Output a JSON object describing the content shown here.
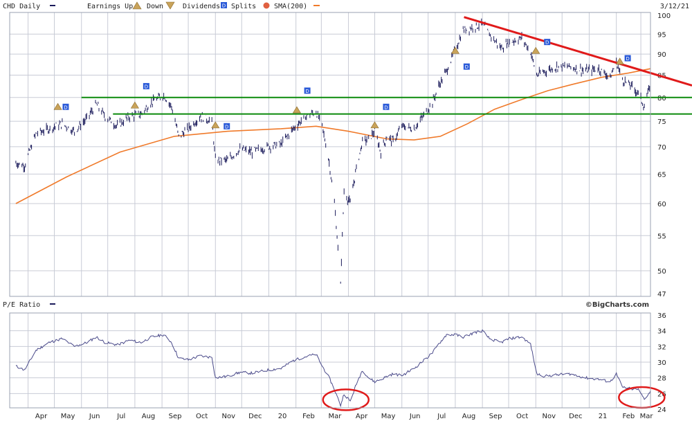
{
  "header": {
    "left": {
      "symbol_label": "CHD Daily",
      "earnings_up_label": "Earnings Up",
      "earnings_down_label": "Down",
      "dividends_label": "Dividends",
      "splits_label": "Splits",
      "sma_label": "SMA(200)"
    },
    "date": "3/12/21"
  },
  "lower_header": {
    "ratio_label": "P/E Ratio",
    "credit": "©BigCharts.com"
  },
  "colors": {
    "price": "#1a1a5a",
    "sma": "#f07a2a",
    "support_lines": "#0a8a0a",
    "trend_line": "#e01a1a",
    "annotation_circles": "#e01a1a",
    "earnings_marker": "#c9a35a",
    "dividend_marker": "#2a5ad8",
    "split_marker": "#e06040",
    "grid": "#c8cbd6"
  },
  "chart_data": [
    {
      "type": "line",
      "series_kind": "price_ohlc_daily",
      "y_scale": "log",
      "ylim": [
        47,
        100
      ],
      "y_ticks": [
        47,
        50,
        55,
        60,
        65,
        70,
        75,
        80,
        85,
        90,
        95,
        100
      ],
      "x_ticks": [
        "Apr",
        "May",
        "Jun",
        "Jul",
        "Aug",
        "Sep",
        "Oct",
        "Nov",
        "Dec",
        "20",
        "Feb",
        "Mar",
        "Apr",
        "May",
        "Jun",
        "Jul",
        "Aug",
        "Sep",
        "Oct",
        "Nov",
        "Dec",
        "21",
        "Feb",
        "Mar"
      ],
      "grid": true,
      "price_path": [
        [
          "2019-03-18",
          67
        ],
        [
          "2019-03-28",
          66.5
        ],
        [
          "2019-04-10",
          72.5
        ],
        [
          "2019-04-25",
          73.5
        ],
        [
          "2019-05-10",
          74.5
        ],
        [
          "2019-05-24",
          73
        ],
        [
          "2019-06-07",
          75.5
        ],
        [
          "2019-06-18",
          78.5
        ],
        [
          "2019-06-28",
          76
        ],
        [
          "2019-07-12",
          74
        ],
        [
          "2019-07-26",
          76
        ],
        [
          "2019-08-08",
          76.5
        ],
        [
          "2019-08-20",
          79
        ],
        [
          "2019-09-03",
          80.5
        ],
        [
          "2019-09-12",
          78
        ],
        [
          "2019-09-20",
          72
        ],
        [
          "2019-10-01",
          73.5
        ],
        [
          "2019-10-15",
          76
        ],
        [
          "2019-10-28",
          75
        ],
        [
          "2019-11-01",
          67.5
        ],
        [
          "2019-11-15",
          67.5
        ],
        [
          "2019-11-29",
          69.5
        ],
        [
          "2019-12-13",
          69
        ],
        [
          "2019-12-31",
          70
        ],
        [
          "2020-01-15",
          70.5
        ],
        [
          "2020-01-29",
          73.5
        ],
        [
          "2020-02-12",
          76
        ],
        [
          "2020-02-24",
          77
        ],
        [
          "2020-03-02",
          74
        ],
        [
          "2020-03-10",
          67
        ],
        [
          "2020-03-16",
          60
        ],
        [
          "2020-03-23",
          48
        ],
        [
          "2020-03-27",
          62
        ],
        [
          "2020-04-03",
          60
        ],
        [
          "2020-04-10",
          66
        ],
        [
          "2020-04-17",
          71
        ],
        [
          "2020-04-24",
          71.5
        ],
        [
          "2020-05-01",
          73
        ],
        [
          "2020-05-08",
          69
        ],
        [
          "2020-05-15",
          72
        ],
        [
          "2020-05-22",
          71
        ],
        [
          "2020-06-01",
          74
        ],
        [
          "2020-06-15",
          73.5
        ],
        [
          "2020-06-29",
          77
        ],
        [
          "2020-07-06",
          79
        ],
        [
          "2020-07-13",
          82.5
        ],
        [
          "2020-07-22",
          86
        ],
        [
          "2020-08-01",
          91
        ],
        [
          "2020-08-10",
          96
        ],
        [
          "2020-08-24",
          97
        ],
        [
          "2020-09-01",
          97.5
        ],
        [
          "2020-09-09",
          95
        ],
        [
          "2020-09-22",
          91.5
        ],
        [
          "2020-10-02",
          93
        ],
        [
          "2020-10-16",
          94
        ],
        [
          "2020-10-26",
          90.5
        ],
        [
          "2020-11-02",
          85
        ],
        [
          "2020-11-12",
          86
        ],
        [
          "2020-11-26",
          87
        ],
        [
          "2020-12-10",
          87
        ],
        [
          "2020-12-28",
          86
        ],
        [
          "2021-01-12",
          86.5
        ],
        [
          "2021-01-25",
          84.5
        ],
        [
          "2021-02-01",
          88
        ],
        [
          "2021-02-08",
          84
        ],
        [
          "2021-02-18",
          82.5
        ],
        [
          "2021-02-26",
          81
        ],
        [
          "2021-03-05",
          78
        ],
        [
          "2021-03-12",
          83
        ]
      ],
      "sma_200": [
        [
          "2019-03-18",
          60
        ],
        [
          "2019-05-15",
          64.5
        ],
        [
          "2019-07-15",
          69
        ],
        [
          "2019-09-15",
          72
        ],
        [
          "2019-11-15",
          73
        ],
        [
          "2020-01-15",
          73.5
        ],
        [
          "2020-02-24",
          74
        ],
        [
          "2020-04-01",
          73
        ],
        [
          "2020-05-15",
          71.5
        ],
        [
          "2020-06-15",
          71.3
        ],
        [
          "2020-07-15",
          72
        ],
        [
          "2020-08-15",
          74.5
        ],
        [
          "2020-09-15",
          77.5
        ],
        [
          "2020-10-15",
          79.5
        ],
        [
          "2020-11-15",
          81.5
        ],
        [
          "2020-12-15",
          83
        ],
        [
          "2021-01-15",
          84.5
        ],
        [
          "2021-02-15",
          85.5
        ],
        [
          "2021-03-12",
          86.5
        ]
      ],
      "support_lines": [
        {
          "y": 80,
          "from": "2019-06-01",
          "to": "2021-03-12"
        },
        {
          "y": 76.5,
          "from": "2019-07-07",
          "to": "2021-03-12"
        }
      ],
      "trend_line": {
        "from": [
          "2020-08-11",
          99.5
        ],
        "to": [
          "2021-03-12",
          85.5
        ]
      },
      "earnings_events": [
        {
          "date": "2019-05-05",
          "y": 78
        },
        {
          "date": "2019-08-01",
          "y": 78.3
        },
        {
          "date": "2019-11-01",
          "y": 74.2
        },
        {
          "date": "2020-02-02",
          "y": 77.3
        },
        {
          "date": "2020-05-01",
          "y": 74.2
        },
        {
          "date": "2020-08-01",
          "y": 90.8
        },
        {
          "date": "2020-11-01",
          "y": 90.8
        },
        {
          "date": "2021-02-05",
          "y": 88.2
        }
      ],
      "dividend_events": [
        {
          "date": "2019-05-14",
          "y": 78
        },
        {
          "date": "2019-08-14",
          "y": 82.5
        },
        {
          "date": "2019-11-14",
          "y": 74
        },
        {
          "date": "2020-02-14",
          "y": 81.5
        },
        {
          "date": "2020-05-14",
          "y": 78
        },
        {
          "date": "2020-08-14",
          "y": 87
        },
        {
          "date": "2020-11-14",
          "y": 93
        },
        {
          "date": "2021-02-14",
          "y": 89
        }
      ]
    },
    {
      "type": "line",
      "series_kind": "pe_ratio",
      "ylim": [
        24,
        36
      ],
      "y_ticks": [
        24,
        26,
        28,
        30,
        32,
        34,
        36
      ],
      "grid": true,
      "values": [
        [
          "2019-03-18",
          29.5
        ],
        [
          "2019-03-28",
          29
        ],
        [
          "2019-04-10",
          31.5
        ],
        [
          "2019-04-25",
          32.5
        ],
        [
          "2019-05-10",
          33
        ],
        [
          "2019-05-24",
          32
        ],
        [
          "2019-06-07",
          32.5
        ],
        [
          "2019-06-18",
          33.2
        ],
        [
          "2019-06-28",
          32.5
        ],
        [
          "2019-07-12",
          32.2
        ],
        [
          "2019-07-26",
          32.8
        ],
        [
          "2019-08-08",
          32.5
        ],
        [
          "2019-08-20",
          33.2
        ],
        [
          "2019-09-03",
          33.5
        ],
        [
          "2019-09-12",
          32.5
        ],
        [
          "2019-09-20",
          30.5
        ],
        [
          "2019-10-01",
          30.3
        ],
        [
          "2019-10-15",
          30.8
        ],
        [
          "2019-10-28",
          30.6
        ],
        [
          "2019-11-01",
          28
        ],
        [
          "2019-11-15",
          28.2
        ],
        [
          "2019-11-29",
          28.7
        ],
        [
          "2019-12-13",
          28.6
        ],
        [
          "2019-12-31",
          29
        ],
        [
          "2020-01-15",
          29.2
        ],
        [
          "2020-01-29",
          30.2
        ],
        [
          "2020-02-12",
          30.7
        ],
        [
          "2020-02-24",
          31
        ],
        [
          "2020-03-02",
          29.5
        ],
        [
          "2020-03-10",
          28
        ],
        [
          "2020-03-16",
          26.5
        ],
        [
          "2020-03-23",
          24.5
        ],
        [
          "2020-03-27",
          26
        ],
        [
          "2020-04-03",
          25
        ],
        [
          "2020-04-10",
          27.2
        ],
        [
          "2020-04-17",
          29
        ],
        [
          "2020-04-24",
          28
        ],
        [
          "2020-05-01",
          27.5
        ],
        [
          "2020-05-08",
          27.8
        ],
        [
          "2020-05-15",
          28.2
        ],
        [
          "2020-05-22",
          28.5
        ],
        [
          "2020-06-01",
          28.3
        ],
        [
          "2020-06-15",
          29.2
        ],
        [
          "2020-06-29",
          30.5
        ],
        [
          "2020-07-06",
          31.2
        ],
        [
          "2020-07-13",
          32.3
        ],
        [
          "2020-07-22",
          33.5
        ],
        [
          "2020-08-01",
          33.5
        ],
        [
          "2020-08-10",
          33.2
        ],
        [
          "2020-08-24",
          33.8
        ],
        [
          "2020-09-01",
          34
        ],
        [
          "2020-09-09",
          33
        ],
        [
          "2020-09-22",
          32.5
        ],
        [
          "2020-10-02",
          33
        ],
        [
          "2020-10-16",
          33.2
        ],
        [
          "2020-10-26",
          32.3
        ],
        [
          "2020-11-02",
          28.5
        ],
        [
          "2020-11-12",
          28.2
        ],
        [
          "2020-11-26",
          28.4
        ],
        [
          "2020-12-10",
          28.5
        ],
        [
          "2020-12-28",
          28
        ],
        [
          "2021-01-12",
          27.8
        ],
        [
          "2021-01-25",
          27.5
        ],
        [
          "2021-02-01",
          28.5
        ],
        [
          "2021-02-08",
          26.8
        ],
        [
          "2021-02-18",
          26.6
        ],
        [
          "2021-02-26",
          26.5
        ],
        [
          "2021-03-05",
          25.3
        ],
        [
          "2021-03-12",
          26.3
        ]
      ],
      "annotation_circles": [
        {
          "date": "2020-03-29",
          "y": 25.2
        },
        {
          "date": "2021-03-02",
          "y": 25.5
        }
      ]
    }
  ]
}
